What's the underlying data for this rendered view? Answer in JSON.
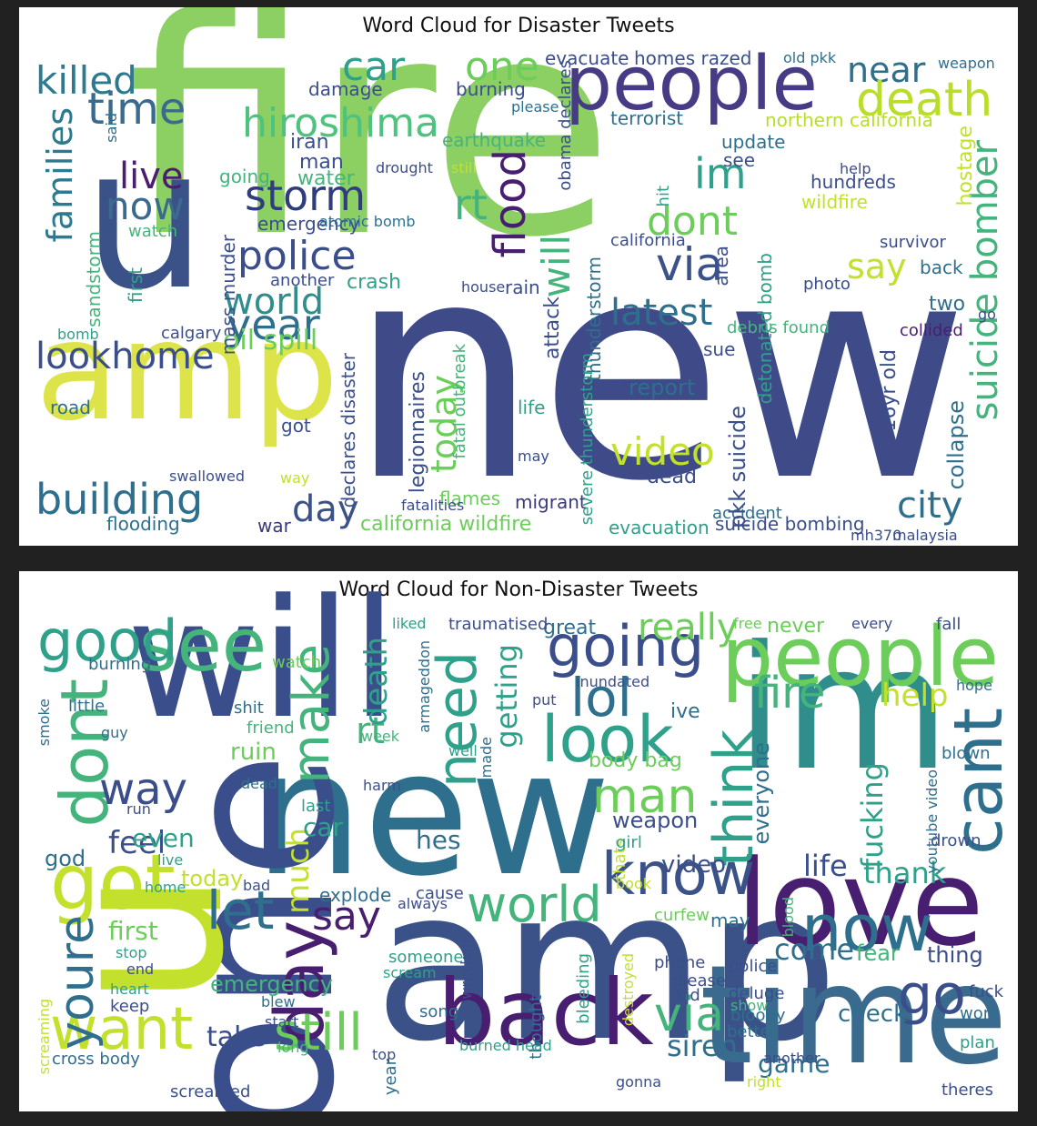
{
  "clouds": [
    {
      "title": "Word Cloud for Disaster Tweets",
      "words": [
        {
          "t": "fire",
          "c": "#8ccf63"
        },
        {
          "t": "new",
          "c": "#3f4a88"
        },
        {
          "t": "amp",
          "c": "#dde44a"
        },
        {
          "t": "u",
          "c": "#3b5289"
        },
        {
          "t": "people",
          "c": "#463b84"
        },
        {
          "t": "hiroshima",
          "c": "#4ec27e"
        },
        {
          "t": "killed",
          "c": "#2d7a8e"
        },
        {
          "t": "time",
          "c": "#3a6b8e"
        },
        {
          "t": "car",
          "c": "#2fa08a"
        },
        {
          "t": "one",
          "c": "#6ccd5a"
        },
        {
          "t": "near",
          "c": "#2f6f8e"
        },
        {
          "t": "death",
          "c": "#b8de29"
        },
        {
          "t": "storm",
          "c": "#2f3c7e"
        },
        {
          "t": "police",
          "c": "#3b4e8c"
        },
        {
          "t": "families",
          "c": "#2d7a8e"
        },
        {
          "t": "live",
          "c": "#4a1d6e"
        },
        {
          "t": "now",
          "c": "#3a6b8e"
        },
        {
          "t": "world",
          "c": "#2f8e8c"
        },
        {
          "t": "year",
          "c": "#2f6f8e"
        },
        {
          "t": "lookhome",
          "c": "#3b4e8c"
        },
        {
          "t": "building",
          "c": "#2f6f8e"
        },
        {
          "t": "day",
          "c": "#3b5289"
        },
        {
          "t": "flood",
          "c": "#481e70"
        },
        {
          "t": "rt",
          "c": "#45b47c"
        },
        {
          "t": "im",
          "c": "#2fa08a"
        },
        {
          "t": "dont",
          "c": "#6ccd5a"
        },
        {
          "t": "via",
          "c": "#3b5289"
        },
        {
          "t": "latest",
          "c": "#2f6f8e"
        },
        {
          "t": "will",
          "c": "#45b47c"
        },
        {
          "t": "today",
          "c": "#6ccd5a"
        },
        {
          "t": "video",
          "c": "#c3e02c"
        },
        {
          "t": "report",
          "c": "#2f6f8e"
        },
        {
          "t": "suicide bomber",
          "c": "#45b47c"
        },
        {
          "t": "say",
          "c": "#c3e02c"
        },
        {
          "t": "city",
          "c": "#2f6f8e"
        },
        {
          "t": "dead",
          "c": "#3b4e8c"
        },
        {
          "t": "migrant",
          "c": "#3a3a7a"
        },
        {
          "t": "california wildfire",
          "c": "#6ccd5a"
        },
        {
          "t": "evacuation",
          "c": "#2fa08a"
        },
        {
          "t": "suicide bombing",
          "c": "#3b4e8c"
        },
        {
          "t": "flooding",
          "c": "#2f6f8e"
        },
        {
          "t": "war",
          "c": "#3a3a7a"
        },
        {
          "t": "oil spill",
          "c": "#6ccd5a"
        },
        {
          "t": "crash",
          "c": "#2fa08a"
        },
        {
          "t": "emergency",
          "c": "#3b4e8c"
        },
        {
          "t": "damage",
          "c": "#3b4e8c"
        },
        {
          "t": "burning",
          "c": "#3b4e8c"
        },
        {
          "t": "evacuate",
          "c": "#3b4e8c"
        },
        {
          "t": "homes razed",
          "c": "#3b4e8c"
        },
        {
          "t": "weapon",
          "c": "#2f6f8e"
        },
        {
          "t": "terrorist",
          "c": "#2f6f8e"
        },
        {
          "t": "northern california",
          "c": "#b8de29"
        },
        {
          "t": "earthquake",
          "c": "#45b47c"
        },
        {
          "t": "update",
          "c": "#2f6f8e"
        },
        {
          "t": "hundreds",
          "c": "#3b4e8c"
        },
        {
          "t": "wildfire",
          "c": "#c3e02c"
        },
        {
          "t": "california",
          "c": "#3b4e8c"
        },
        {
          "t": "survivor",
          "c": "#3b4e8c"
        },
        {
          "t": "back",
          "c": "#2f6f8e"
        },
        {
          "t": "two",
          "c": "#2f6f8e"
        },
        {
          "t": "area",
          "c": "#3b4e8c"
        },
        {
          "t": "hostage",
          "c": "#c3e02c"
        },
        {
          "t": "iran",
          "c": "#3b4e8c"
        },
        {
          "t": "man",
          "c": "#3b4e8c"
        },
        {
          "t": "water",
          "c": "#45b47c"
        },
        {
          "t": "going",
          "c": "#45b47c"
        },
        {
          "t": "watch",
          "c": "#45b47c"
        },
        {
          "t": "mass murder",
          "c": "#3b4e8c"
        },
        {
          "t": "sandstorm",
          "c": "#45b47c"
        },
        {
          "t": "first",
          "c": "#2fa08a"
        },
        {
          "t": "another",
          "c": "#3b4e8c"
        },
        {
          "t": "road",
          "c": "#2f6f8e"
        },
        {
          "t": "got",
          "c": "#3b4e8c"
        },
        {
          "t": "calgary",
          "c": "#3b4e8c"
        },
        {
          "t": "bomb",
          "c": "#2fa08a"
        },
        {
          "t": "swallowed",
          "c": "#3b4e8c"
        },
        {
          "t": "way",
          "c": "#c3e02c"
        },
        {
          "t": "flames",
          "c": "#6ccd5a"
        },
        {
          "t": "fatalities",
          "c": "#3b4e8c"
        },
        {
          "t": "legionnaires",
          "c": "#3b4e8c"
        },
        {
          "t": "declares disaster",
          "c": "#3b4e8c"
        },
        {
          "t": "life",
          "c": "#2fa08a"
        },
        {
          "t": "may",
          "c": "#3b4e8c"
        },
        {
          "t": "sue",
          "c": "#3b4e8c"
        },
        {
          "t": "accident",
          "c": "#2f6f8e"
        },
        {
          "t": "pkk suicide",
          "c": "#3b4e8c"
        },
        {
          "t": "detonated bomb",
          "c": "#2fa08a"
        },
        {
          "t": "16yr old",
          "c": "#3b4e8c"
        },
        {
          "t": "collapse",
          "c": "#2f6f8e"
        },
        {
          "t": "debris found",
          "c": "#45b47c"
        },
        {
          "t": "collided",
          "c": "#481e70"
        },
        {
          "t": "mh370",
          "c": "#3b4e8c"
        },
        {
          "t": "malaysia",
          "c": "#3b4e8c"
        },
        {
          "t": "photo",
          "c": "#3b4e8c"
        },
        {
          "t": "help",
          "c": "#3b4e8c"
        },
        {
          "t": "see",
          "c": "#3b4e8c"
        },
        {
          "t": "hit",
          "c": "#2fa08a"
        },
        {
          "t": "fatal outbreak",
          "c": "#45b47c"
        },
        {
          "t": "severe thunderstorm",
          "c": "#2fa08a"
        },
        {
          "t": "attack",
          "c": "#3b4e8c"
        },
        {
          "t": "thunderstorm",
          "c": "#2f6f8e"
        },
        {
          "t": "obama declares",
          "c": "#3b4e8c"
        },
        {
          "t": "drought",
          "c": "#3b4e8c"
        },
        {
          "t": "atomic bomb",
          "c": "#2f6f8e"
        },
        {
          "t": "house",
          "c": "#3b4e8c"
        },
        {
          "t": "rain",
          "c": "#3b4e8c"
        },
        {
          "t": "please",
          "c": "#2f6f8e"
        },
        {
          "t": "still",
          "c": "#c3e02c"
        },
        {
          "t": "said",
          "c": "#2f6f8e"
        },
        {
          "t": "old pkk",
          "c": "#2f6f8e"
        },
        {
          "t": "go",
          "c": "#3b4e8c"
        }
      ]
    },
    {
      "title": "Word Cloud for Non-Disaster Tweets",
      "words": [
        {
          "t": "will",
          "c": "#3b4e8c"
        },
        {
          "t": "im",
          "c": "#2f8e8c"
        },
        {
          "t": "new",
          "c": "#2f6f8e"
        },
        {
          "t": "amp",
          "c": "#3b5289"
        },
        {
          "t": "one",
          "c": "#3b4e8c"
        },
        {
          "t": "u",
          "c": "#c3e02c"
        },
        {
          "t": "love",
          "c": "#481e70"
        },
        {
          "t": "time",
          "c": "#3a6b8e"
        },
        {
          "t": "people",
          "c": "#6ccd5a"
        },
        {
          "t": "see",
          "c": "#45b47c"
        },
        {
          "t": "good",
          "c": "#2fa08a"
        },
        {
          "t": "dont",
          "c": "#45b47c"
        },
        {
          "t": "got",
          "c": "#c3e02c"
        },
        {
          "t": "back",
          "c": "#481e70"
        },
        {
          "t": "want",
          "c": "#c3e02c"
        },
        {
          "t": "day",
          "c": "#481e70"
        },
        {
          "t": "make",
          "c": "#45b47c"
        },
        {
          "t": "going",
          "c": "#3b4e8c"
        },
        {
          "t": "really",
          "c": "#6ccd5a"
        },
        {
          "t": "look",
          "c": "#2fa08a"
        },
        {
          "t": "lol",
          "c": "#2f6f8e"
        },
        {
          "t": "know",
          "c": "#3b5289"
        },
        {
          "t": "world",
          "c": "#45b47c"
        },
        {
          "t": "let",
          "c": "#2f6f8e"
        },
        {
          "t": "say",
          "c": "#481e70"
        },
        {
          "t": "now",
          "c": "#2f6f8e"
        },
        {
          "t": "cant",
          "c": "#2f6f8e"
        },
        {
          "t": "think",
          "c": "#2fa08a"
        },
        {
          "t": "man",
          "c": "#6ccd5a"
        },
        {
          "t": "fire",
          "c": "#45b47c"
        },
        {
          "t": "help",
          "c": "#c3e02c"
        },
        {
          "t": "still",
          "c": "#6ccd5a"
        },
        {
          "t": "via",
          "c": "#45b47c"
        },
        {
          "t": "need",
          "c": "#2fa08a"
        },
        {
          "t": "way",
          "c": "#3b4e8c"
        },
        {
          "t": "youre",
          "c": "#2f6f8e"
        },
        {
          "t": "feel",
          "c": "#3b4e8c"
        },
        {
          "t": "first",
          "c": "#6ccd5a"
        },
        {
          "t": "come",
          "c": "#2f6f8e"
        },
        {
          "t": "go",
          "c": "#3b4e8c"
        },
        {
          "t": "siren",
          "c": "#2f6f8e"
        },
        {
          "t": "game",
          "c": "#2f6f8e"
        },
        {
          "t": "thank",
          "c": "#2fa08a"
        },
        {
          "t": "life",
          "c": "#3b4e8c"
        },
        {
          "t": "video",
          "c": "#3b4e8c"
        },
        {
          "t": "check",
          "c": "#2f6f8e"
        },
        {
          "t": "fear",
          "c": "#45b47c"
        },
        {
          "t": "thing",
          "c": "#3b4e8c"
        },
        {
          "t": "fucking",
          "c": "#2fa08a"
        },
        {
          "t": "everyone",
          "c": "#2f6f8e"
        },
        {
          "t": "weapon",
          "c": "#3b4e8c"
        },
        {
          "t": "body bag",
          "c": "#6ccd5a"
        },
        {
          "t": "today",
          "c": "#c3e02c"
        },
        {
          "t": "emergency",
          "c": "#45b47c"
        },
        {
          "t": "take",
          "c": "#3b4e8c"
        },
        {
          "t": "much",
          "c": "#c3e02c"
        },
        {
          "t": "rt",
          "c": "#45b47c"
        },
        {
          "t": "death",
          "c": "#2fa08a"
        },
        {
          "t": "getting",
          "c": "#2fa08a"
        },
        {
          "t": "great",
          "c": "#2f6f8e"
        },
        {
          "t": "never",
          "c": "#6ccd5a"
        },
        {
          "t": "ive",
          "c": "#2f6f8e"
        },
        {
          "t": "car",
          "c": "#2fa08a"
        },
        {
          "t": "hes",
          "c": "#2f6f8e"
        },
        {
          "t": "ruin",
          "c": "#6ccd5a"
        },
        {
          "t": "even",
          "c": "#2fa08a"
        },
        {
          "t": "god",
          "c": "#2f6f8e"
        },
        {
          "t": "burning",
          "c": "#2f6f8e"
        },
        {
          "t": "little",
          "c": "#2f6f8e"
        },
        {
          "t": "guy",
          "c": "#2f6f8e"
        },
        {
          "t": "shit",
          "c": "#2f6f8e"
        },
        {
          "t": "friend",
          "c": "#45b47c"
        },
        {
          "t": "watch",
          "c": "#6ccd5a"
        },
        {
          "t": "dead",
          "c": "#2f6f8e"
        },
        {
          "t": "harm",
          "c": "#3b4e8c"
        },
        {
          "t": "last",
          "c": "#2fa08a"
        },
        {
          "t": "may",
          "c": "#2f6f8e"
        },
        {
          "t": "curfew",
          "c": "#6ccd5a"
        },
        {
          "t": "explode",
          "c": "#2f6f8e"
        },
        {
          "t": "always",
          "c": "#3b4e8c"
        },
        {
          "t": "cause",
          "c": "#3b4e8c"
        },
        {
          "t": "song",
          "c": "#2f6f8e"
        },
        {
          "t": "phone",
          "c": "#3b4e8c"
        },
        {
          "t": "police",
          "c": "#3b4e8c"
        },
        {
          "t": "deluge",
          "c": "#3b4e8c"
        },
        {
          "t": "bloody",
          "c": "#2f6f8e"
        },
        {
          "t": "better",
          "c": "#2f6f8e"
        },
        {
          "t": "drown",
          "c": "#3b4e8c"
        },
        {
          "t": "blown",
          "c": "#2f6f8e"
        },
        {
          "t": "theres",
          "c": "#3b4e8c"
        },
        {
          "t": "fuck",
          "c": "#3b4e8c"
        },
        {
          "t": "work",
          "c": "#2f6f8e"
        },
        {
          "t": "plan",
          "c": "#2fa08a"
        },
        {
          "t": "hope",
          "c": "#2f6f8e"
        },
        {
          "t": "fall",
          "c": "#3b4e8c"
        },
        {
          "t": "every",
          "c": "#3b4e8c"
        },
        {
          "t": "free",
          "c": "#6ccd5a"
        },
        {
          "t": "liked",
          "c": "#2fa08a"
        },
        {
          "t": "traumatised",
          "c": "#3b4e8c"
        },
        {
          "t": "inundated",
          "c": "#3b4e8c"
        },
        {
          "t": "armageddon",
          "c": "#2f6f8e"
        },
        {
          "t": "put",
          "c": "#3b4e8c"
        },
        {
          "t": "well",
          "c": "#2fa08a"
        },
        {
          "t": "week",
          "c": "#45b47c"
        },
        {
          "t": "smoke",
          "c": "#2f6f8e"
        },
        {
          "t": "run",
          "c": "#3b4e8c"
        },
        {
          "t": "live",
          "c": "#2fa08a"
        },
        {
          "t": "bad",
          "c": "#3b4e8c"
        },
        {
          "t": "home",
          "c": "#2fa08a"
        },
        {
          "t": "stop",
          "c": "#2fa08a"
        },
        {
          "t": "end",
          "c": "#3b4e8c"
        },
        {
          "t": "heart",
          "c": "#2fa08a"
        },
        {
          "t": "keep",
          "c": "#3b4e8c"
        },
        {
          "t": "blew",
          "c": "#2f6f8e"
        },
        {
          "t": "start",
          "c": "#3b4e8c"
        },
        {
          "t": "long",
          "c": "#45b47c"
        },
        {
          "t": "cross body",
          "c": "#2f6f8e"
        },
        {
          "t": "screamed",
          "c": "#3b4e8c"
        },
        {
          "t": "scream",
          "c": "#2fa08a"
        },
        {
          "t": "someone",
          "c": "#2fa08a"
        },
        {
          "t": "wrecked",
          "c": "#3b4e8c"
        },
        {
          "t": "burned head",
          "c": "#2fa08a"
        },
        {
          "t": "top",
          "c": "#3b4e8c"
        },
        {
          "t": "year",
          "c": "#2f6f8e"
        },
        {
          "t": "thought",
          "c": "#2f6f8e"
        },
        {
          "t": "bleeding",
          "c": "#2fa08a"
        },
        {
          "t": "destroyed",
          "c": "#c3e02c"
        },
        {
          "t": "thats",
          "c": "#c3e02c"
        },
        {
          "t": "please",
          "c": "#3b4e8c"
        },
        {
          "t": "kid",
          "c": "#3b4e8c"
        },
        {
          "t": "show",
          "c": "#45b47c"
        },
        {
          "t": "another",
          "c": "#3b4e8c"
        },
        {
          "t": "right",
          "c": "#c3e02c"
        },
        {
          "t": "gonna",
          "c": "#3b4e8c"
        },
        {
          "t": "youtube video",
          "c": "#2f6f8e"
        },
        {
          "t": "girl",
          "c": "#2fa08a"
        },
        {
          "t": "book",
          "c": "#c3e02c"
        },
        {
          "t": "made",
          "c": "#2f6f8e"
        },
        {
          "t": "screaming",
          "c": "#c3e02c"
        },
        {
          "t": "blood",
          "c": "#45b47c"
        }
      ]
    }
  ]
}
